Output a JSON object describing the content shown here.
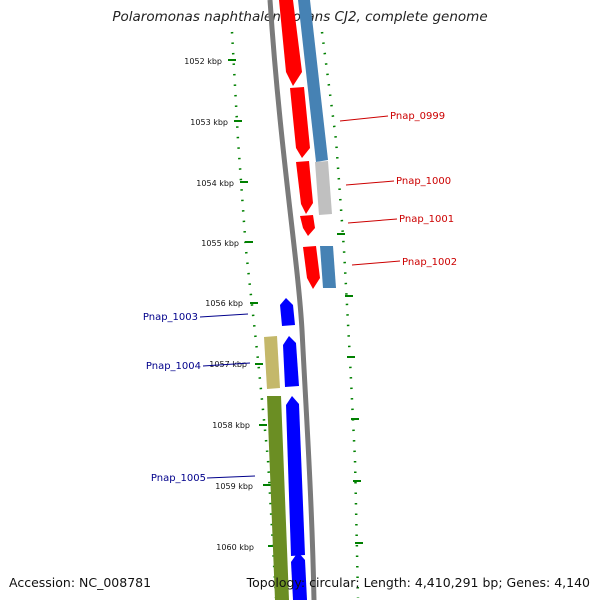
{
  "title": "Polaromonas naphthalenivorans CJ2, complete genome",
  "accession": "Accession: NC_008781",
  "topology": "Topology: circular; Length: 4,410,291 bp; Genes: 4,140",
  "colors": {
    "forward_gene": "#ff0000",
    "forward_gene_alt": "#4682b4",
    "reverse_gene": "#0000ff",
    "reverse_gene_alt": "#6b8e23",
    "tick": "#008000",
    "backbone": "#808080",
    "forward_label": "#cc0000",
    "reverse_label": "#00008b"
  },
  "ticks": [
    {
      "label": "1052 kbp"
    },
    {
      "label": "1053 kbp"
    },
    {
      "label": "1054 kbp"
    },
    {
      "label": "1055 kbp"
    },
    {
      "label": "1056 kbp"
    },
    {
      "label": "1057 kbp"
    },
    {
      "label": "1058 kbp"
    },
    {
      "label": "1059 kbp"
    },
    {
      "label": "1060 kbp"
    }
  ],
  "gene_labels": {
    "g0999": "Pnap_0999",
    "g1000": "Pnap_1000",
    "g1001": "Pnap_1001",
    "g1002": "Pnap_1002",
    "g1003": "Pnap_1003",
    "g1004": "Pnap_1004",
    "g1005": "Pnap_1005"
  }
}
